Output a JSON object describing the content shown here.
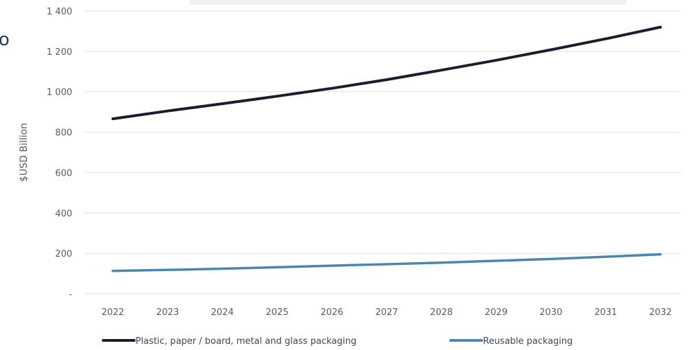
{
  "chart_data": {
    "type": "line",
    "x": [
      2022,
      2023,
      2024,
      2025,
      2026,
      2027,
      2028,
      2029,
      2030,
      2031,
      2032
    ],
    "x_labels": [
      "2022",
      "2023",
      "2024",
      "2025",
      "2026",
      "2027",
      "2028",
      "2029",
      "2030",
      "2031",
      "2032"
    ],
    "ylabel": "$USD Billion",
    "xlabel": "",
    "ylim": [
      0,
      1400
    ],
    "y_ticks": [
      0,
      200,
      400,
      600,
      800,
      1000,
      1200,
      1400
    ],
    "y_tick_labels": [
      "-",
      "200",
      "400",
      "600",
      "800",
      "1 000",
      "1 200",
      "1 400"
    ],
    "grid": true,
    "legend_position": "bottom",
    "series": [
      {
        "name": "Plastic, paper / board, metal and glass packaging",
        "color": "#1b1d2e",
        "values": [
          866,
          905,
          941,
          978,
          1017,
          1060,
          1107,
          1156,
          1208,
          1262,
          1320
        ]
      },
      {
        "name": "Reusable packaging",
        "color": "#4a86ad",
        "values": [
          113,
          118,
          124,
          131,
          139,
          146,
          154,
          163,
          172,
          183,
          195
        ]
      }
    ]
  },
  "cropped_text": "o"
}
